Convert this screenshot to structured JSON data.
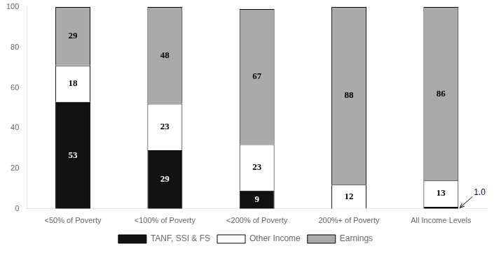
{
  "chart_data": {
    "type": "bar",
    "stacked": true,
    "categories": [
      "<50% of Poverty",
      "<100% of Poverty",
      "<200% of Poverty",
      "200%+ of Poverty",
      "All Income Levels"
    ],
    "series": [
      {
        "name": "TANF, SSI & FS",
        "color": "#111111",
        "values": [
          53,
          29,
          9,
          0,
          1.0
        ],
        "value_labels": [
          "53",
          "29",
          "9",
          null,
          null
        ]
      },
      {
        "name": "Other Income",
        "color": "#ffffff",
        "values": [
          18,
          23,
          23,
          12,
          13
        ]
      },
      {
        "name": "Earnings",
        "color": "#aaaaaa",
        "values": [
          29,
          48,
          67,
          88,
          86
        ]
      }
    ],
    "data_labels": true,
    "annotations": [
      {
        "text": "1.0",
        "category": "All Income Levels",
        "series": "TANF, SSI & FS"
      }
    ],
    "ylim": [
      0,
      100
    ],
    "yticks": [
      0,
      20,
      40,
      60,
      80,
      100
    ],
    "grid": false,
    "legend": "bottom"
  }
}
